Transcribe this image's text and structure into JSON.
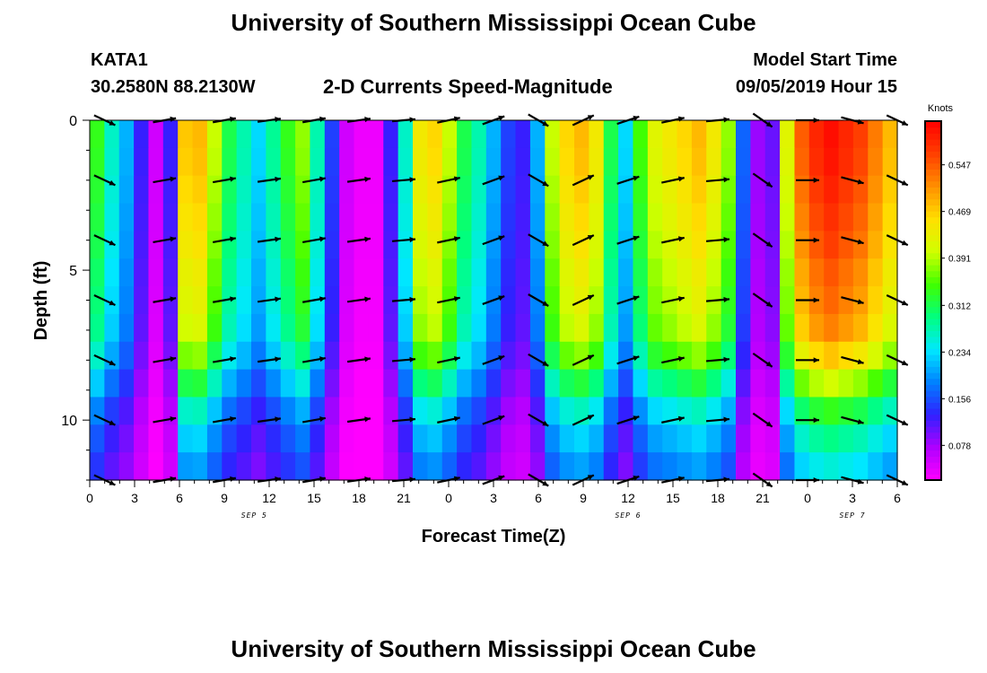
{
  "header": {
    "title": "University of Southern Mississippi Ocean Cube",
    "station": "KATA1",
    "coordinates": "30.2580N 88.2130W",
    "model_start_label": "Model Start Time",
    "model_start_value": "09/05/2019 Hour 15"
  },
  "footer": {
    "title": "University of Southern Mississippi Ocean Cube"
  },
  "chart_data": {
    "type": "heatmap",
    "title": "2-D Currents Speed-Magnitude",
    "xlabel": "Forecast Time(Z)",
    "ylabel": "Depth (ft)",
    "x_ticks": [
      "0",
      "3",
      "6",
      "9",
      "12",
      "15",
      "18",
      "21",
      "0",
      "3",
      "6",
      "9",
      "12",
      "15",
      "18",
      "21",
      "0",
      "3",
      "6"
    ],
    "x_hours": [
      0,
      54
    ],
    "date_labels": [
      {
        "hour": 11,
        "text": "SEP 5"
      },
      {
        "hour": 36,
        "text": "SEP 6"
      },
      {
        "hour": 51,
        "text": "SEP 7"
      }
    ],
    "y_ticks": [
      0,
      5,
      10
    ],
    "ylim": [
      0,
      12
    ],
    "colorbar": {
      "unit": "Knots",
      "ticks": [
        "0.547",
        "0.469",
        "0.391",
        "0.312",
        "0.234",
        "0.156",
        "0.078"
      ],
      "tick_values": [
        0.547,
        0.469,
        0.391,
        0.312,
        0.234,
        0.156,
        0.078
      ],
      "range": [
        0.02,
        0.62
      ],
      "colors": [
        "#ff00ff",
        "#b000ff",
        "#3020ff",
        "#0080ff",
        "#00e8ff",
        "#00ff80",
        "#40ff00",
        "#d0ff00",
        "#ffe000",
        "#ff9000",
        "#ff4000",
        "#ff0000"
      ]
    },
    "time_profile_knots": [
      0.32,
      0.25,
      0.2,
      0.12,
      0.05,
      0.12,
      0.45,
      0.46,
      0.38,
      0.3,
      0.26,
      0.22,
      0.27,
      0.32,
      0.36,
      0.26,
      0.14,
      0.05,
      0.03,
      0.03,
      0.12,
      0.25,
      0.42,
      0.44,
      0.38,
      0.3,
      0.26,
      0.2,
      0.14,
      0.12,
      0.2,
      0.38,
      0.44,
      0.46,
      0.42,
      0.3,
      0.22,
      0.33,
      0.4,
      0.42,
      0.44,
      0.46,
      0.42,
      0.36,
      0.16,
      0.08,
      0.1,
      0.4,
      0.52,
      0.56,
      0.58,
      0.56,
      0.54,
      0.5,
      0.46
    ],
    "depth_factor": [
      1.05,
      1.04,
      1.02,
      1.0,
      0.98,
      0.95,
      0.93,
      0.9,
      0.82,
      0.7,
      0.58,
      0.5,
      0.44
    ],
    "vector_hours": [
      1,
      5,
      9,
      12,
      15,
      18,
      21,
      24,
      27,
      30,
      33,
      36,
      39,
      42,
      45,
      48,
      51,
      54
    ],
    "vector_depths": [
      0,
      2,
      4,
      6,
      8,
      10,
      12
    ],
    "vector_directions_deg": [
      -25,
      10,
      10,
      8,
      10,
      8,
      5,
      12,
      20,
      -30,
      25,
      18,
      12,
      5,
      -35,
      0,
      -15,
      -25
    ]
  }
}
